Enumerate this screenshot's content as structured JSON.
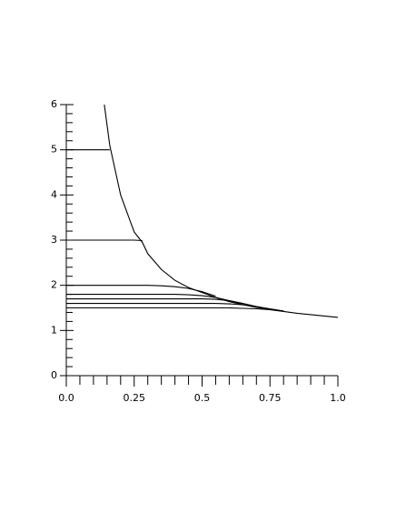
{
  "chart_data": {
    "type": "line",
    "x": [
      0,
      0.05,
      0.1,
      0.14,
      0.16,
      0.2,
      0.25,
      0.28,
      0.3,
      0.35,
      0.4,
      0.45,
      0.5,
      0.55,
      0.6,
      0.65,
      0.7,
      0.75,
      0.8,
      0.85,
      0.9,
      0.95,
      1.0
    ],
    "series": [
      {
        "color": "#000000",
        "values": [
          null,
          null,
          null,
          6.0,
          5.1,
          4.0,
          3.18,
          2.95,
          2.7,
          2.35,
          2.11,
          1.95,
          1.84,
          1.73,
          1.64,
          1.57,
          1.51,
          1.46,
          1.42,
          1.38,
          1.35,
          1.32,
          1.29
        ]
      },
      {
        "color": "#000000",
        "values": [
          5,
          5,
          5,
          5,
          5,
          null,
          null,
          null,
          null,
          null,
          null,
          null,
          null,
          null,
          null,
          null,
          null,
          null,
          null,
          null,
          null,
          null,
          null
        ]
      },
      {
        "color": "#000000",
        "values": [
          3,
          3,
          3,
          3,
          3,
          3,
          3,
          2.99,
          null,
          null,
          null,
          null,
          null,
          null,
          null,
          null,
          null,
          null,
          null,
          null,
          null,
          null,
          null
        ]
      },
      {
        "color": "#000000",
        "values": [
          2,
          2,
          2,
          2,
          2,
          2,
          2,
          2,
          2,
          1.99,
          1.97,
          1.93,
          1.86,
          1.76,
          null,
          null,
          null,
          null,
          null,
          null,
          null,
          null,
          null
        ]
      },
      {
        "color": "#000000",
        "values": [
          1.8,
          1.8,
          1.8,
          1.8,
          1.8,
          1.8,
          1.8,
          1.8,
          1.8,
          1.8,
          1.8,
          1.79,
          1.77,
          1.73,
          1.66,
          1.59,
          null,
          null,
          null,
          null,
          null,
          null,
          null
        ]
      },
      {
        "color": "#000000",
        "values": [
          1.7,
          1.7,
          1.7,
          1.7,
          1.7,
          1.7,
          1.7,
          1.7,
          1.7,
          1.7,
          1.7,
          1.7,
          1.7,
          1.69,
          1.66,
          1.6,
          1.53,
          1.47,
          null,
          null,
          null,
          null,
          null
        ]
      },
      {
        "color": "#000000",
        "values": [
          1.6,
          1.6,
          1.6,
          1.6,
          1.6,
          1.6,
          1.6,
          1.6,
          1.6,
          1.6,
          1.6,
          1.6,
          1.6,
          1.6,
          1.59,
          1.57,
          1.53,
          1.48,
          1.43,
          null,
          null,
          null,
          null
        ]
      },
      {
        "color": "#000000",
        "values": [
          1.5,
          1.5,
          1.5,
          1.5,
          1.5,
          1.5,
          1.5,
          1.5,
          1.5,
          1.5,
          1.5,
          1.5,
          1.5,
          1.5,
          1.5,
          1.49,
          1.48,
          1.46,
          1.43,
          null,
          null,
          null,
          null
        ]
      }
    ],
    "xlim": [
      0,
      1.0
    ],
    "ylim": [
      0,
      6
    ],
    "xticks": [
      {
        "value": 0,
        "label": "0.0"
      },
      0.25,
      0.5,
      0.75,
      {
        "value": 1.0,
        "label": "1.0"
      }
    ],
    "yticks": [
      0,
      1,
      2,
      3,
      4,
      5,
      6
    ],
    "xminorticks": [
      0.05,
      0.1,
      0.15,
      0.2,
      0.3,
      0.35,
      0.4,
      0.45,
      0.55,
      0.6,
      0.65,
      0.7,
      0.8,
      0.85,
      0.9,
      0.95
    ],
    "yminorticks": [
      0.2,
      0.4,
      0.6,
      0.8,
      1.2,
      1.4,
      1.6,
      1.8,
      2.2,
      2.4,
      2.6,
      2.8,
      3.2,
      3.4,
      3.6,
      3.8,
      4.2,
      4.4,
      4.6,
      4.8,
      5.2,
      5.4,
      5.6,
      5.8
    ],
    "grid": false
  }
}
